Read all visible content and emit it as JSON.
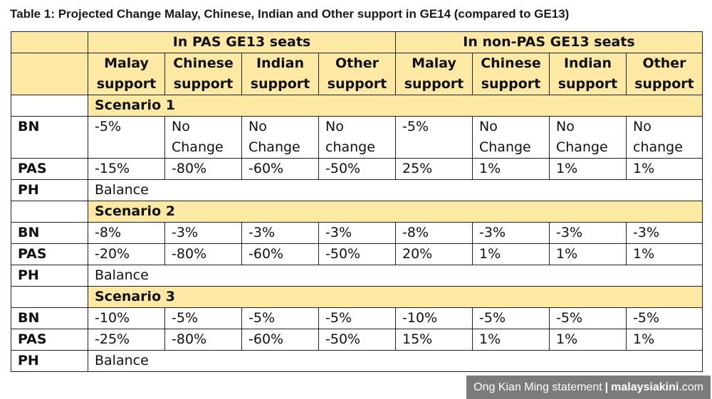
{
  "title": "Table 1: Projected Change Malay, Chinese, Indian and Other support in GE14 (compared to GE13)",
  "groups": [
    "In PAS GE13 seats",
    "In non-PAS GE13 seats"
  ],
  "columns": [
    [
      "Malay",
      "support"
    ],
    [
      "Chinese",
      "support"
    ],
    [
      "Indian",
      "support"
    ],
    [
      "Other",
      "support"
    ],
    [
      "Malay",
      "support"
    ],
    [
      "Chinese",
      "support"
    ],
    [
      "Indian",
      "support"
    ],
    [
      "Other",
      "support"
    ]
  ],
  "scenarios": [
    {
      "name": "Scenario 1",
      "rows": [
        {
          "label": "BN",
          "cells": [
            "-5%",
            "No\nChange",
            "No\nChange",
            "No\nchange",
            "-5%",
            "No\nChange",
            "No\nChange",
            "No\nchange"
          ]
        },
        {
          "label": "PAS",
          "cells": [
            "-15%",
            "-80%",
            "-60%",
            "-50%",
            "25%",
            "1%",
            "1%",
            "1%"
          ]
        },
        {
          "label": "PH",
          "balance": "Balance"
        }
      ]
    },
    {
      "name": "Scenario 2",
      "rows": [
        {
          "label": "BN",
          "cells": [
            "-8%",
            "-3%",
            "-3%",
            "-3%",
            "-8%",
            "-3%",
            "-3%",
            "-3%"
          ]
        },
        {
          "label": "PAS",
          "cells": [
            "-20%",
            "-80%",
            "-60%",
            "-50%",
            "20%",
            "1%",
            "1%",
            "1%"
          ]
        },
        {
          "label": "PH",
          "balance": "Balance"
        }
      ]
    },
    {
      "name": "Scenario 3",
      "rows": [
        {
          "label": "BN",
          "cells": [
            "-10%",
            "-5%",
            "-5%",
            "-5%",
            "-10%",
            "-5%",
            "-5%",
            "-5%"
          ]
        },
        {
          "label": "PAS",
          "cells": [
            "-25%",
            "-80%",
            "-60%",
            "-50%",
            "15%",
            "1%",
            "1%",
            "1%"
          ]
        },
        {
          "label": "PH",
          "balance": "Balance"
        }
      ]
    }
  ],
  "credit": {
    "text": "Ong Kian Ming statement",
    "separator": "|",
    "brand": "malaysiakini",
    "suffix": ".com"
  }
}
